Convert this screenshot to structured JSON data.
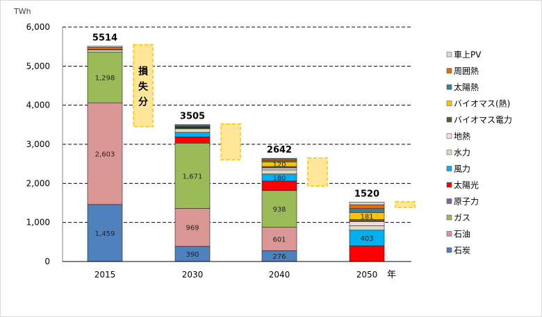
{
  "chart_data": {
    "type": "bar",
    "stacked": true,
    "ylabel": "TWh",
    "xlabel": "年",
    "ylim": [
      0,
      6000
    ],
    "yticks": [
      "0",
      "1,000",
      "2,000",
      "3,000",
      "4,000",
      "5,000",
      "6,000"
    ],
    "ytick_values": [
      0,
      1000,
      2000,
      3000,
      4000,
      5000,
      6000
    ],
    "grid": "dashed horizontal",
    "legend_position": "right",
    "categories": [
      "2015",
      "2030",
      "2040",
      "2050"
    ],
    "totals": [
      5514,
      3505,
      2642,
      1520
    ],
    "loss_annotation": "損失分",
    "loss_ranges": [
      [
        3450,
        5550
      ],
      [
        2600,
        3520
      ],
      [
        1930,
        2650
      ],
      [
        1380,
        1530
      ]
    ],
    "series": [
      {
        "name": "石炭",
        "color": "#4f81bd",
        "values": [
          1459,
          390,
          276,
          0
        ],
        "labels": [
          "1,459",
          "390",
          "276",
          ""
        ]
      },
      {
        "name": "石油",
        "color": "#d99694",
        "values": [
          2603,
          969,
          601,
          0
        ],
        "labels": [
          "2,603",
          "969",
          "601",
          ""
        ]
      },
      {
        "name": "ガス",
        "color": "#9bbb59",
        "values": [
          1298,
          1671,
          938,
          0
        ],
        "labels": [
          "1,298",
          "1,671",
          "938",
          ""
        ]
      },
      {
        "name": "原子力",
        "color": "#8064a2",
        "values": [
          0,
          0,
          0,
          0
        ],
        "labels": [
          "",
          "",
          "",
          ""
        ]
      },
      {
        "name": "太陽光",
        "color": "#ff0000",
        "values": [
          0,
          160,
          245,
          400
        ],
        "labels": [
          "",
          "",
          "",
          ""
        ]
      },
      {
        "name": "風力",
        "color": "#00b0f0",
        "values": [
          0,
          115,
          180,
          403
        ],
        "labels": [
          "",
          "",
          "180",
          "403"
        ]
      },
      {
        "name": "水力",
        "color": "#ddd9c4",
        "values": [
          55,
          90,
          105,
          110
        ],
        "labels": [
          "",
          "",
          "",
          ""
        ]
      },
      {
        "name": "地熱",
        "color": "#f2dcdb",
        "values": [
          0,
          15,
          50,
          110
        ],
        "labels": [
          "",
          "",
          "",
          ""
        ]
      },
      {
        "name": "バイオマス電力",
        "color": "#4f6228",
        "values": [
          10,
          25,
          35,
          50
        ],
        "labels": [
          "",
          "",
          "",
          ""
        ]
      },
      {
        "name": "バイオマス(熱)",
        "color": "#ffc000",
        "values": [
          0,
          10,
          120,
          181
        ],
        "labels": [
          "",
          "",
          "120",
          "181"
        ]
      },
      {
        "name": "太陽熱",
        "color": "#31859c",
        "values": [
          0,
          20,
          40,
          100
        ],
        "labels": [
          "",
          "",
          "",
          ""
        ]
      },
      {
        "name": "周囲熱",
        "color": "#e46c0a",
        "values": [
          55,
          20,
          35,
          100
        ],
        "labels": [
          "",
          "",
          "",
          ""
        ]
      },
      {
        "name": "車上PV",
        "color": "#d9d9d9",
        "values": [
          34,
          20,
          17,
          66
        ],
        "labels": [
          "",
          "",
          "",
          ""
        ]
      }
    ]
  }
}
